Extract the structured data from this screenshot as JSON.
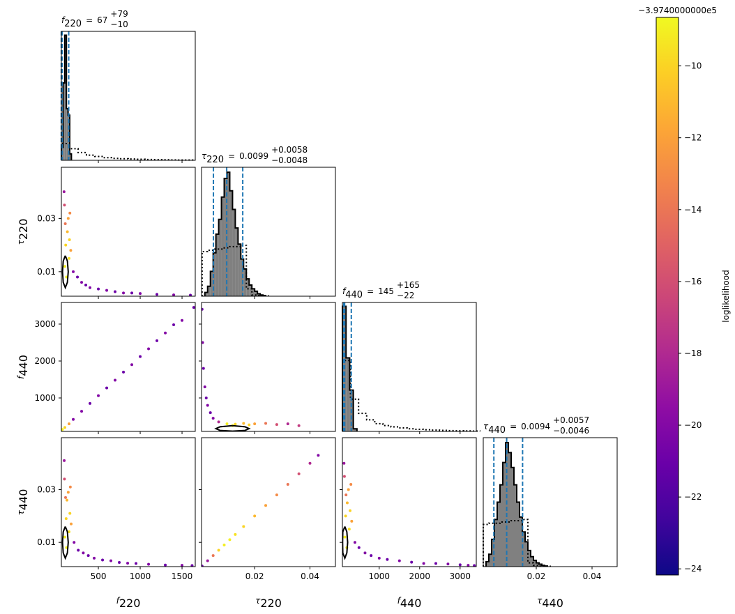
{
  "chart_data": {
    "type": "corner",
    "parameters": [
      {
        "symbol": "f",
        "subscript": "220",
        "xlim": [
          58,
          1658
        ],
        "xticks": [
          500,
          1000,
          1500
        ]
      },
      {
        "symbol": "τ",
        "subscript": "220",
        "xlim": [
          0.0008,
          0.0492
        ],
        "xticks": [
          0.02,
          0.04
        ],
        "ylim": [
          0.0008,
          0.0492
        ],
        "yticks": [
          0.01,
          0.03
        ]
      },
      {
        "symbol": "f",
        "subscript": "440",
        "xlim": [
          90,
          3400
        ],
        "xticks": [
          1000,
          2000,
          3000
        ],
        "ylim": [
          94,
          3585
        ],
        "yticks": [
          1000,
          2000,
          3000
        ]
      },
      {
        "symbol": "τ",
        "subscript": "440",
        "xlim": [
          0.001,
          0.049
        ],
        "xticks": [
          0.02,
          0.04
        ],
        "ylim": [
          0.0008,
          0.0497
        ],
        "yticks": [
          0.01,
          0.03
        ]
      }
    ],
    "diagonal": [
      {
        "title": {
          "symbol": "f",
          "subscript": "220",
          "relation": "=",
          "median": "67",
          "upper": "+79",
          "lower": "−10"
        },
        "quantiles": [
          57,
          67,
          146
        ],
        "ylim": [
          0,
          100
        ],
        "bins": [
          58,
          78,
          98,
          118,
          138,
          158,
          178
        ],
        "counts": [
          10,
          60,
          97,
          40,
          35,
          5
        ],
        "prior_bins": [
          58,
          158,
          258,
          358,
          458,
          558,
          658,
          758,
          858,
          958,
          1058,
          1158,
          1258,
          1358,
          1458,
          1558,
          1658
        ],
        "prior_counts": [
          13,
          9,
          6,
          4,
          3,
          2,
          1.5,
          1.2,
          1,
          0.8,
          0.6,
          0.5,
          0.4,
          0.3,
          0.2,
          0.2
        ]
      },
      {
        "title": {
          "symbol": "τ",
          "subscript": "220",
          "relation": "=",
          "median": "0.0099",
          "upper": "+0.0058",
          "lower": "−0.0048"
        },
        "quantiles": [
          0.0051,
          0.0099,
          0.0157
        ],
        "ylim": [
          0,
          104
        ],
        "bins": [
          0.002,
          0.003,
          0.004,
          0.005,
          0.006,
          0.007,
          0.008,
          0.009,
          0.01,
          0.011,
          0.012,
          0.013,
          0.014,
          0.015,
          0.016,
          0.017,
          0.018,
          0.019,
          0.02,
          0.021,
          0.022,
          0.023,
          0.024
        ],
        "counts": [
          3,
          8,
          20,
          35,
          50,
          62,
          80,
          95,
          100,
          85,
          70,
          55,
          42,
          30,
          22,
          14,
          9,
          6,
          4,
          2,
          1,
          0.5
        ],
        "prior_bins": [
          0.001,
          0.003,
          0.005,
          0.007,
          0.009,
          0.011,
          0.013,
          0.015,
          0.017,
          0.019,
          0.021,
          0.023,
          0.025
        ],
        "prior_counts": [
          36,
          37,
          38,
          38,
          39,
          40,
          40,
          41,
          6,
          1,
          0.5,
          0.3
        ]
      },
      {
        "title": {
          "symbol": "f",
          "subscript": "440",
          "relation": "=",
          "median": "145",
          "upper": "+165",
          "lower": "−22"
        },
        "quantiles": [
          123,
          145,
          310
        ],
        "ylim": [
          0,
          100
        ],
        "bins": [
          90,
          180,
          270,
          360,
          450
        ],
        "counts": [
          97,
          57,
          32,
          2
        ],
        "prior_bins": [
          90,
          290,
          490,
          690,
          890,
          1090,
          1290,
          1490,
          1690,
          1890,
          2090,
          2290,
          2490,
          2690,
          2890,
          3090,
          3290,
          3490
        ],
        "prior_counts": [
          55,
          25,
          14,
          9,
          6,
          4.5,
          3.5,
          2.7,
          2,
          1.6,
          1.3,
          1,
          0.8,
          0.6,
          0.5,
          0.4,
          0.3
        ]
      },
      {
        "title": {
          "symbol": "τ",
          "subscript": "440",
          "relation": "=",
          "median": "0.0094",
          "upper": "+0.0057",
          "lower": "−0.0046"
        },
        "quantiles": [
          0.0048,
          0.0094,
          0.0151
        ],
        "ylim": [
          0,
          104
        ],
        "bins": [
          0.002,
          0.003,
          0.004,
          0.005,
          0.006,
          0.007,
          0.008,
          0.009,
          0.01,
          0.011,
          0.012,
          0.013,
          0.014,
          0.015,
          0.016,
          0.017,
          0.018,
          0.019,
          0.02,
          0.021,
          0.022,
          0.023,
          0.024
        ],
        "counts": [
          4,
          10,
          22,
          38,
          52,
          66,
          84,
          100,
          92,
          80,
          66,
          52,
          40,
          28,
          20,
          13,
          8,
          5,
          3,
          2,
          1,
          0.5
        ],
        "prior_bins": [
          0.001,
          0.003,
          0.005,
          0.007,
          0.009,
          0.011,
          0.013,
          0.015,
          0.017,
          0.019,
          0.021,
          0.023,
          0.025
        ],
        "prior_counts": [
          34,
          35,
          35,
          36,
          36,
          37,
          37,
          38,
          3,
          1,
          0.5,
          0.3
        ]
      }
    ],
    "panels": [
      {
        "row": 1,
        "col": 0,
        "x": [
          100,
          110,
          130,
          140,
          150,
          155,
          120,
          95,
          90,
          105,
          160,
          170,
          200,
          250,
          300,
          350,
          400,
          500,
          600,
          700,
          800,
          900,
          1000,
          1200,
          1400,
          1600
        ],
        "y": [
          0.012,
          0.02,
          0.025,
          0.03,
          0.015,
          0.022,
          0.008,
          0.035,
          0.04,
          0.028,
          0.032,
          0.018,
          0.01,
          0.008,
          0.006,
          0.005,
          0.004,
          0.0035,
          0.003,
          0.0025,
          0.002,
          0.002,
          0.0018,
          0.0015,
          0.0013,
          0.0012
        ],
        "c": [
          -9,
          -10,
          -11,
          -12,
          -9.5,
          -10,
          -9,
          -16,
          -19,
          -14,
          -13,
          -12,
          -20,
          -21,
          -20,
          -21,
          -20,
          -21,
          -20,
          -21,
          -20,
          -21,
          -20,
          -21,
          -20,
          -21
        ],
        "contour": {
          "x": [
            105,
            130,
            140,
            130,
            105,
            80,
            72,
            80,
            105
          ],
          "y": [
            0.016,
            0.014,
            0.01,
            0.006,
            0.004,
            0.006,
            0.01,
            0.014,
            0.016
          ]
        }
      },
      {
        "row": 2,
        "col": 0,
        "x": [
          70,
          100,
          150,
          200,
          300,
          400,
          500,
          600,
          700,
          800,
          900,
          1000,
          1100,
          1200,
          1300,
          1400,
          1500,
          1640
        ],
        "y": [
          145,
          200,
          300,
          420,
          640,
          850,
          1060,
          1270,
          1480,
          1700,
          1900,
          2120,
          2330,
          2550,
          2760,
          2980,
          3100,
          3450
        ],
        "c": [
          -9,
          -10,
          -12,
          -20,
          -20,
          -21,
          -20,
          -21,
          -20,
          -21,
          -20,
          -21,
          -20,
          -21,
          -20,
          -21,
          -20,
          -21
        ]
      },
      {
        "row": 2,
        "col": 1,
        "x": [
          0.001,
          0.0012,
          0.0015,
          0.002,
          0.0025,
          0.003,
          0.004,
          0.005,
          0.007,
          0.01,
          0.013,
          0.016,
          0.02,
          0.024,
          0.028,
          0.032,
          0.036,
          0.012,
          0.018
        ],
        "y": [
          3400,
          2500,
          1800,
          1300,
          1000,
          800,
          600,
          450,
          350,
          300,
          290,
          310,
          300,
          310,
          280,
          300,
          250,
          250,
          270
        ],
        "c": [
          -21,
          -20,
          -21,
          -20,
          -21,
          -20,
          -21,
          -20,
          -18,
          -9,
          -10,
          -11,
          -12,
          -14,
          -16,
          -18,
          -17,
          -9,
          -10
        ],
        "contour": {
          "x": [
            0.012,
            0.0165,
            0.018,
            0.0165,
            0.012,
            0.0075,
            0.006,
            0.0075,
            0.012
          ],
          "y": [
            250,
            220,
            170,
            120,
            100,
            120,
            170,
            220,
            250
          ]
        }
      },
      {
        "row": 3,
        "col": 0,
        "x": [
          100,
          115,
          125,
          140,
          150,
          160,
          120,
          95,
          92,
          108,
          165,
          175,
          210,
          260,
          320,
          380,
          450,
          550,
          650,
          750,
          850,
          950,
          1100,
          1300,
          1500,
          1620
        ],
        "y": [
          0.012,
          0.019,
          0.026,
          0.029,
          0.014,
          0.021,
          0.008,
          0.034,
          0.041,
          0.027,
          0.031,
          0.017,
          0.01,
          0.007,
          0.006,
          0.005,
          0.004,
          0.0033,
          0.003,
          0.0024,
          0.0021,
          0.002,
          0.0017,
          0.0014,
          0.0013,
          0.0012
        ],
        "c": [
          -9,
          -10,
          -11,
          -12,
          -9.5,
          -10,
          -9,
          -16,
          -19,
          -14,
          -13,
          -12,
          -20,
          -21,
          -20,
          -21,
          -20,
          -21,
          -20,
          -21,
          -20,
          -21,
          -20,
          -21,
          -20,
          -21
        ],
        "contour": {
          "x": [
            105,
            130,
            140,
            130,
            105,
            80,
            72,
            80,
            105
          ],
          "y": [
            0.016,
            0.014,
            0.01,
            0.006,
            0.004,
            0.006,
            0.01,
            0.014,
            0.016
          ]
        }
      },
      {
        "row": 3,
        "col": 1,
        "x": [
          0.001,
          0.003,
          0.005,
          0.007,
          0.009,
          0.011,
          0.013,
          0.016,
          0.02,
          0.024,
          0.028,
          0.032,
          0.036,
          0.04,
          0.043
        ],
        "y": [
          0.001,
          0.003,
          0.005,
          0.007,
          0.009,
          0.011,
          0.013,
          0.016,
          0.02,
          0.024,
          0.028,
          0.032,
          0.036,
          0.04,
          0.043
        ],
        "c": [
          -21,
          -19,
          -14,
          -10,
          -9,
          -9,
          -9.5,
          -10,
          -11,
          -12,
          -13,
          -14,
          -16,
          -18,
          -20
        ]
      },
      {
        "row": 3,
        "col": 2,
        "x": [
          150,
          170,
          210,
          240,
          260,
          280,
          200,
          140,
          130,
          180,
          300,
          320,
          400,
          500,
          650,
          800,
          1000,
          1200,
          1500,
          1800,
          2100,
          2400,
          2700,
          3000,
          3200,
          3350
        ],
        "y": [
          0.012,
          0.02,
          0.025,
          0.03,
          0.015,
          0.022,
          0.008,
          0.035,
          0.04,
          0.028,
          0.032,
          0.018,
          0.01,
          0.008,
          0.006,
          0.005,
          0.004,
          0.0035,
          0.003,
          0.0025,
          0.002,
          0.002,
          0.0018,
          0.0015,
          0.0013,
          0.0012
        ],
        "c": [
          -9,
          -10,
          -11,
          -12,
          -9.5,
          -10,
          -9,
          -16,
          -19,
          -14,
          -13,
          -12,
          -20,
          -21,
          -20,
          -21,
          -20,
          -21,
          -20,
          -21,
          -20,
          -21,
          -20,
          -21,
          -20,
          -21
        ],
        "contour": {
          "x": [
            150,
            200,
            220,
            200,
            150,
            100,
            95,
            100,
            150
          ],
          "y": [
            0.016,
            0.014,
            0.01,
            0.006,
            0.004,
            0.006,
            0.01,
            0.014,
            0.016
          ]
        }
      }
    ],
    "colorbar": {
      "label": "loglikelihood",
      "offset_label": "−3.9740000000e5",
      "cmap": "plasma",
      "clim": [
        -24.17,
        -8.65
      ],
      "ticks": [
        {
          "value": -24,
          "label": "−24"
        },
        {
          "value": -22,
          "label": "−22"
        },
        {
          "value": -20,
          "label": "−20"
        },
        {
          "value": -18,
          "label": "−18"
        },
        {
          "value": -16,
          "label": "−16"
        },
        {
          "value": -14,
          "label": "−14"
        },
        {
          "value": -12,
          "label": "−12"
        },
        {
          "value": -10,
          "label": "−10"
        }
      ]
    }
  }
}
